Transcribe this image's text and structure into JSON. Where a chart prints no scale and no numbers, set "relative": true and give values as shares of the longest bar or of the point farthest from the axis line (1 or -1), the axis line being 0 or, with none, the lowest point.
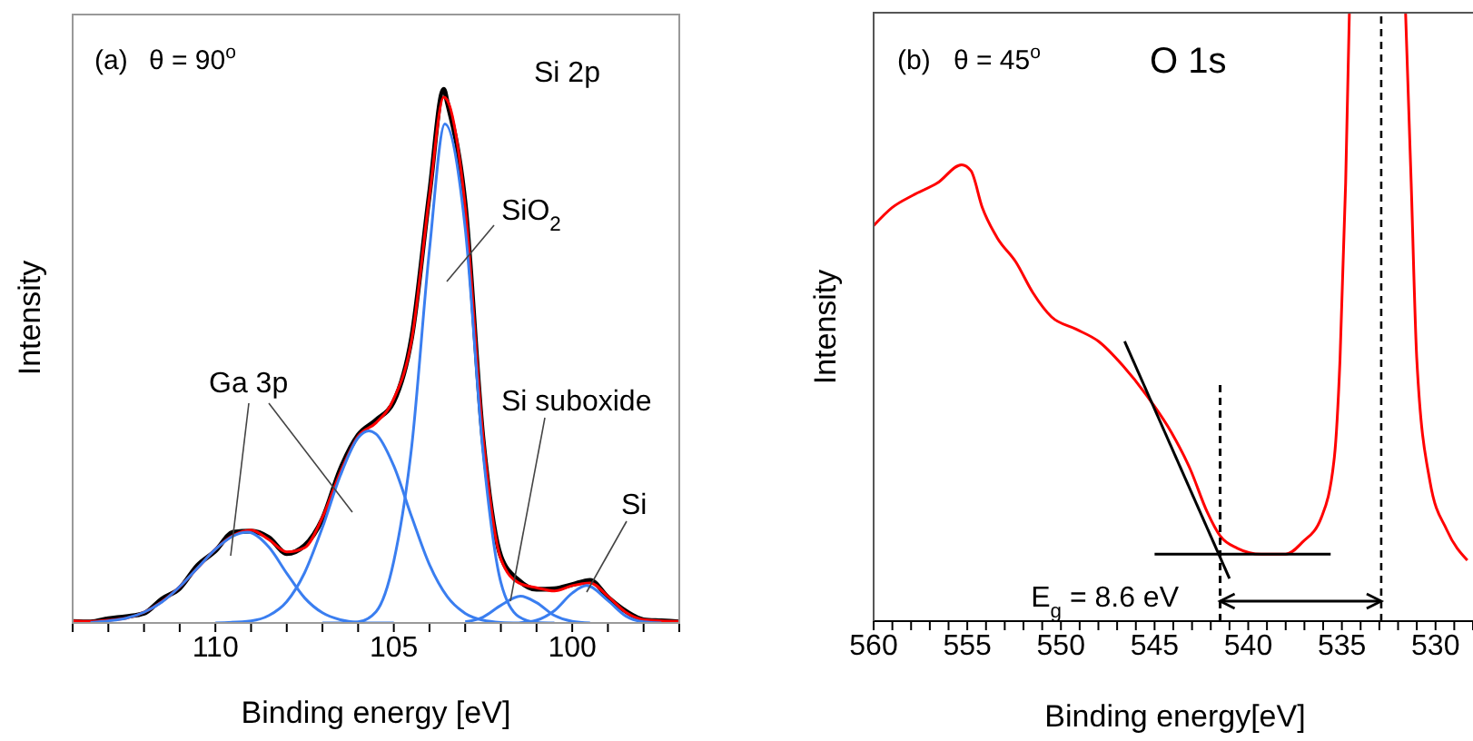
{
  "chart_data": [
    {
      "type": "line",
      "relative": true,
      "xlabel": "Binding energy [eV]",
      "ylabel": "Intensity",
      "xlim": [
        114,
        97
      ],
      "xticks": [
        {
          "value": 114,
          "label": null
        },
        {
          "value": 113,
          "label": null
        },
        {
          "value": 112,
          "label": null
        },
        {
          "value": 111,
          "label": null
        },
        110,
        {
          "value": 109,
          "label": null
        },
        {
          "value": 108,
          "label": null
        },
        {
          "value": 107,
          "label": null
        },
        {
          "value": 106,
          "label": null
        },
        105,
        {
          "value": 104,
          "label": null
        },
        {
          "value": 103,
          "label": null
        },
        {
          "value": 102,
          "label": null
        },
        {
          "value": 101,
          "label": null
        },
        100,
        {
          "value": 99,
          "label": null
        },
        {
          "value": 98,
          "label": null
        },
        {
          "value": 97,
          "label": null
        }
      ],
      "annotations": [
        "(a)",
        "θ = 90$^{o}$",
        "Si 2p",
        "SiO$_{2}$",
        "Ga 3p",
        "Si suboxide",
        "Si"
      ],
      "series": [
        {
          "color": "#000000",
          "x": [
            114,
            113.5,
            113,
            112.5,
            112,
            111.5,
            111,
            110.5,
            110,
            109.5,
            109,
            108.5,
            108,
            107.5,
            107,
            106.5,
            106,
            105.5,
            105,
            104.5,
            104,
            103.6,
            103.5,
            103,
            102.5,
            102,
            101.5,
            101,
            100.5,
            100,
            99.5,
            99,
            98.5,
            98,
            97.5,
            97
          ],
          "values": [
            0.003,
            0.002,
            0.008,
            0.012,
            0.018,
            0.045,
            0.065,
            0.108,
            0.135,
            0.17,
            0.172,
            0.16,
            0.13,
            0.145,
            0.195,
            0.288,
            0.352,
            0.38,
            0.415,
            0.535,
            0.805,
            1.0,
            0.975,
            0.785,
            0.345,
            0.125,
            0.08,
            0.063,
            0.064,
            0.072,
            0.08,
            0.048,
            0.022,
            0.006,
            0.004,
            0.002
          ]
        },
        {
          "color": "#ff0000",
          "x": [
            114,
            113.5,
            113,
            112.5,
            112,
            111.5,
            111,
            110.5,
            110,
            109.5,
            109,
            108.5,
            108,
            107.5,
            107,
            106.5,
            106,
            105.5,
            105,
            104.5,
            104,
            103.6,
            103.5,
            103,
            102.5,
            102,
            101.5,
            101,
            100.5,
            100,
            99.5,
            99,
            98.5,
            98,
            97.5,
            97
          ],
          "values": [
            0.004,
            0.003,
            0.005,
            0.009,
            0.02,
            0.04,
            0.068,
            0.103,
            0.138,
            0.164,
            0.174,
            0.156,
            0.133,
            0.141,
            0.198,
            0.282,
            0.35,
            0.375,
            0.42,
            0.53,
            0.8,
            0.985,
            0.979,
            0.78,
            0.35,
            0.12,
            0.075,
            0.066,
            0.06,
            0.07,
            0.075,
            0.05,
            0.02,
            0.006,
            0.004,
            0.003
          ]
        },
        {
          "color": "#3a7ef0",
          "x": [
            113.5,
            113,
            112.5,
            112,
            111.5,
            111,
            110.5,
            110,
            109.5,
            109.1,
            108.5,
            108,
            107.5,
            107,
            106.5,
            106,
            105.5,
            105
          ],
          "values": [
            0.001,
            0.004,
            0.009,
            0.02,
            0.039,
            0.068,
            0.103,
            0.138,
            0.163,
            0.17,
            0.142,
            0.093,
            0.047,
            0.019,
            0.006,
            0.001,
            0,
            0
          ]
        },
        {
          "color": "#3a7ef0",
          "x": [
            110,
            109,
            108.5,
            108,
            107.5,
            107,
            106.5,
            106,
            105.7,
            105.5,
            105,
            104.5,
            104,
            103.5,
            103,
            102.5,
            102,
            101.5
          ],
          "values": [
            0,
            0.004,
            0.014,
            0.04,
            0.094,
            0.179,
            0.276,
            0.347,
            0.36,
            0.354,
            0.294,
            0.199,
            0.109,
            0.049,
            0.018,
            0.005,
            0.001,
            0
          ]
        },
        {
          "color": "#3a7ef0",
          "x": [
            107,
            106.5,
            106,
            105.5,
            105,
            104.5,
            104,
            103.57,
            103,
            102.5,
            102,
            101.5,
            101,
            100.5
          ],
          "values": [
            0,
            0,
            0.002,
            0.021,
            0.116,
            0.33,
            0.7,
            0.935,
            0.74,
            0.32,
            0.076,
            0.012,
            0.001,
            0
          ]
        },
        {
          "color": "#3a7ef0",
          "x": [
            103,
            102.5,
            102,
            101.45,
            101,
            100.5,
            100,
            99.5
          ],
          "values": [
            0.002,
            0.011,
            0.033,
            0.05,
            0.038,
            0.014,
            0.003,
            0
          ]
        },
        {
          "color": "#3a7ef0",
          "x": [
            101.5,
            101,
            100.5,
            100,
            99.6,
            99,
            98.5,
            98,
            97.5
          ],
          "values": [
            0,
            0.005,
            0.023,
            0.056,
            0.07,
            0.042,
            0.013,
            0.002,
            0
          ]
        }
      ]
    },
    {
      "type": "line",
      "relative": true,
      "xlabel": "Binding energy[eV]",
      "ylabel": "Intensity",
      "xlim": [
        560,
        528
      ],
      "xticks": [
        560,
        {
          "value": 559,
          "label": null
        },
        {
          "value": 558,
          "label": null
        },
        {
          "value": 557,
          "label": null
        },
        {
          "value": 556,
          "label": null
        },
        555,
        {
          "value": 554,
          "label": null
        },
        {
          "value": 553,
          "label": null
        },
        {
          "value": 552,
          "label": null
        },
        {
          "value": 551,
          "label": null
        },
        550,
        {
          "value": 549,
          "label": null
        },
        {
          "value": 548,
          "label": null
        },
        {
          "value": 547,
          "label": null
        },
        {
          "value": 546,
          "label": null
        },
        545,
        {
          "value": 544,
          "label": null
        },
        {
          "value": 543,
          "label": null
        },
        {
          "value": 542,
          "label": null
        },
        {
          "value": 541,
          "label": null
        },
        540,
        {
          "value": 539,
          "label": null
        },
        {
          "value": 538,
          "label": null
        },
        {
          "value": 537,
          "label": null
        },
        {
          "value": 536,
          "label": null
        },
        535,
        {
          "value": 534,
          "label": null
        },
        {
          "value": 533,
          "label": null
        },
        {
          "value": 532,
          "label": null
        },
        {
          "value": 531,
          "label": null
        },
        530,
        {
          "value": 529,
          "label": null
        },
        {
          "value": 528,
          "label": null
        }
      ],
      "annotations": [
        "(b)",
        "θ = 45$^{o}$",
        "O 1s",
        "E$_{g}$ = 8.6 eV"
      ],
      "ref_lines": [
        {
          "axis": "x",
          "value": 532.9,
          "line_style": "dashed",
          "color": "#000000"
        }
      ],
      "series": [
        {
          "color": "#ff0000",
          "x": [
            560,
            559,
            557.9,
            556.6,
            555.3,
            554.8,
            554.2,
            553.4,
            552.4,
            551.5,
            550.5,
            549.2,
            548,
            546.7,
            545.4,
            544.1,
            543.1,
            542.2,
            541.5,
            540.6,
            539.3,
            538,
            537.1,
            536.1,
            535.4,
            535.1,
            534.8,
            534.6,
            533.5,
            531.6,
            531.3,
            531,
            530.3,
            529.4,
            528.3
          ],
          "values": [
            0.65,
            0.68,
            0.7,
            0.72,
            0.75,
            0.74,
            0.68,
            0.63,
            0.59,
            0.54,
            0.5,
            0.48,
            0.46,
            0.42,
            0.37,
            0.31,
            0.25,
            0.18,
            0.14,
            0.12,
            0.11,
            0.11,
            0.13,
            0.17,
            0.27,
            0.43,
            0.72,
            1.0,
            null,
            1.0,
            0.72,
            0.43,
            0.23,
            0.15,
            0.1
          ]
        },
        {
          "color": "#000000",
          "x": [
            546.6,
            541.0
          ],
          "values": [
            0.46,
            0.07
          ]
        },
        {
          "color": "#000000",
          "x": [
            545.0,
            535.6
          ],
          "values": [
            0.11,
            0.11
          ]
        },
        {
          "color": "#000000",
          "line_style": "dashed",
          "x": [
            541.5,
            541.5
          ],
          "values": [
            0,
            0.39
          ]
        }
      ]
    }
  ]
}
